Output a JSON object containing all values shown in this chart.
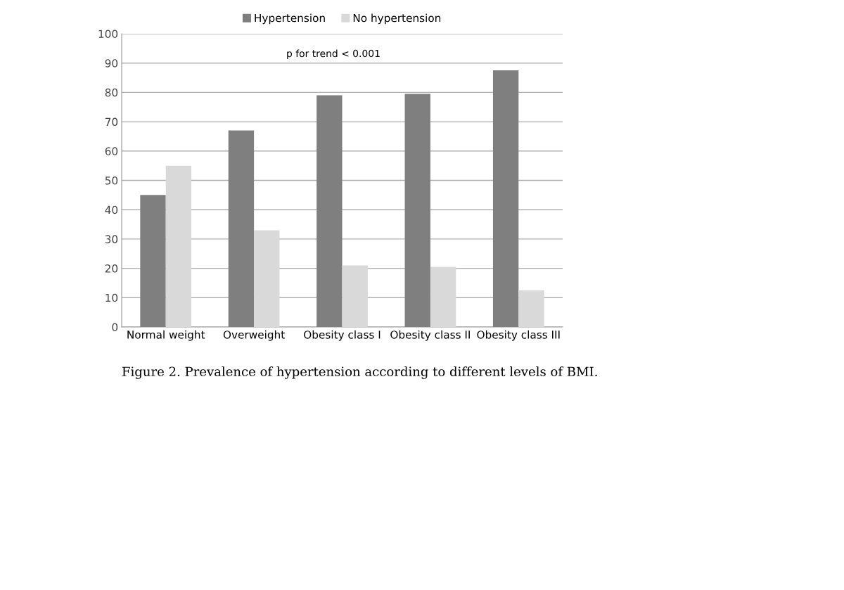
{
  "chart_data": {
    "type": "bar",
    "categories": [
      "Normal weight",
      "Overweight",
      "Obesity class I",
      "Obesity class II",
      "Obesity class III"
    ],
    "series": [
      {
        "name": "Hypertension",
        "color": "#7f7f7f",
        "values": [
          45,
          67,
          79,
          79.5,
          87.5
        ]
      },
      {
        "name": "No hypertension",
        "color": "#d9d9d9",
        "values": [
          55,
          33,
          21,
          20.5,
          12.5
        ]
      }
    ],
    "ylim": [
      0,
      100
    ],
    "yticks": [
      0,
      10,
      20,
      30,
      40,
      50,
      60,
      70,
      80,
      90,
      100
    ],
    "grid": "y",
    "legend": "top",
    "annotations": [
      "p for trend < 0.001",
      "Figure 2. Prevalence of hypertension according to different levels of BMI."
    ]
  }
}
